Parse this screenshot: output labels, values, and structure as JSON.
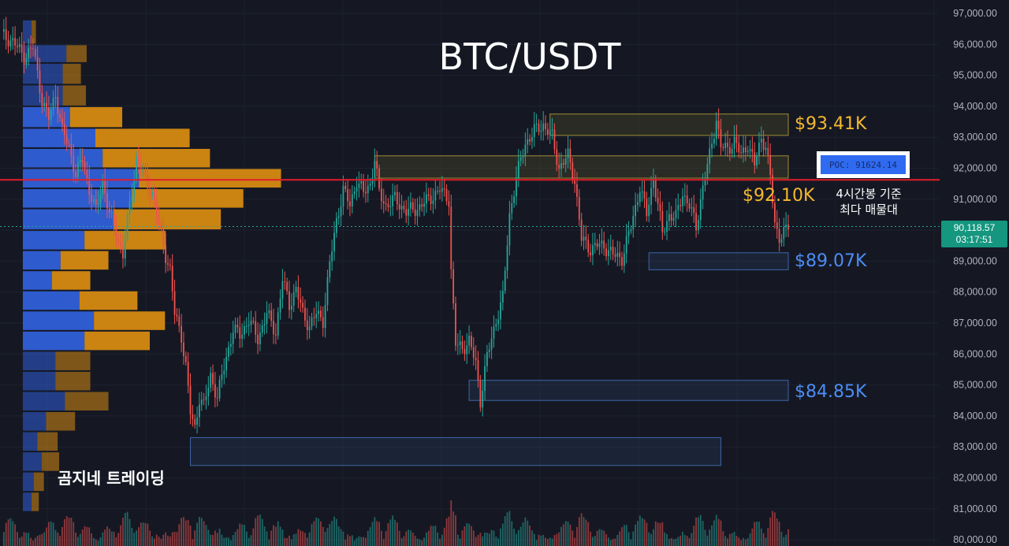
{
  "header": {
    "title": "BTC/USDT"
  },
  "watermark": "곰지네 트레이딩",
  "colors": {
    "background": "#151823",
    "up_candle": "#26a69a",
    "down_candle": "#ef5350",
    "poc_line": "#e11d2a",
    "resistance_label": "#f5b82e",
    "support_label": "#4c8df6",
    "vp_blue": "#2f5fd8",
    "vp_orange": "#d58a12"
  },
  "price_axis": {
    "ticks": [
      "97,000.00",
      "96,000.00",
      "95,000.00",
      "94,000.00",
      "93,000.00",
      "92,000.00",
      "91,000.00",
      "90,000.00",
      "89,000.00",
      "88,000.00",
      "87,000.00",
      "86,000.00",
      "85,000.00",
      "84,000.00",
      "83,000.00",
      "82,000.00",
      "81,000.00",
      "80,000.00"
    ],
    "current_price": "90,118.57",
    "countdown": "03:17:51"
  },
  "levels": {
    "resistance_1": "$93.41K",
    "poc_level": "$92.10K",
    "support_1": "$89.07K",
    "support_2": "$84.85K"
  },
  "poc_box": {
    "label": "POC: 91624.14"
  },
  "poc_note": {
    "line1": "4시간봉 기준",
    "line2": "최다 매물대"
  },
  "chart_data": {
    "type": "candlestick",
    "title": "BTC/USDT",
    "ylim": [
      80000,
      97400
    ],
    "current_price": 90118.57,
    "poc_price": 91624.14,
    "levels": [
      93410,
      92100,
      89070,
      84850
    ],
    "close_path": [
      [
        0,
        96300
      ],
      [
        5,
        96100
      ],
      [
        10,
        95600
      ],
      [
        14,
        95900
      ],
      [
        18,
        94200
      ],
      [
        21,
        93600
      ],
      [
        24,
        94400
      ],
      [
        27,
        93200
      ],
      [
        30,
        92700
      ],
      [
        33,
        91800
      ],
      [
        36,
        92300
      ],
      [
        39,
        91300
      ],
      [
        42,
        90600
      ],
      [
        45,
        91600
      ],
      [
        48,
        90500
      ],
      [
        51,
        89900
      ],
      [
        54,
        89200
      ],
      [
        57,
        90800
      ],
      [
        60,
        92300
      ],
      [
        64,
        91600
      ],
      [
        67,
        91200
      ],
      [
        70,
        90200
      ],
      [
        73,
        89200
      ],
      [
        75,
        88700
      ],
      [
        77,
        87300
      ],
      [
        80,
        86600
      ],
      [
        82,
        85600
      ],
      [
        84,
        84100
      ],
      [
        86,
        83600
      ],
      [
        88,
        84600
      ],
      [
        90,
        84300
      ],
      [
        93,
        85300
      ],
      [
        96,
        84600
      ],
      [
        100,
        85900
      ],
      [
        103,
        86800
      ],
      [
        106,
        86600
      ],
      [
        110,
        87100
      ],
      [
        114,
        86500
      ],
      [
        118,
        87300
      ],
      [
        122,
        86700
      ],
      [
        125,
        88400
      ],
      [
        128,
        87600
      ],
      [
        131,
        88100
      ],
      [
        134,
        87300
      ],
      [
        137,
        86900
      ],
      [
        140,
        87300
      ],
      [
        143,
        87100
      ],
      [
        146,
        88900
      ],
      [
        149,
        90300
      ],
      [
        152,
        91300
      ],
      [
        155,
        90800
      ],
      [
        158,
        91600
      ],
      [
        161,
        91200
      ],
      [
        164,
        91500
      ],
      [
        166,
        92300
      ],
      [
        168,
        91200
      ],
      [
        171,
        90800
      ],
      [
        175,
        91000
      ],
      [
        180,
        90600
      ],
      [
        185,
        90700
      ],
      [
        190,
        91000
      ],
      [
        195,
        91300
      ],
      [
        199,
        91000
      ],
      [
        200,
        88700
      ],
      [
        202,
        86300
      ],
      [
        205,
        86200
      ],
      [
        208,
        86400
      ],
      [
        211,
        85700
      ],
      [
        213,
        84500
      ],
      [
        216,
        85900
      ],
      [
        220,
        87100
      ],
      [
        223,
        87800
      ],
      [
        226,
        90500
      ],
      [
        229,
        91700
      ],
      [
        233,
        92800
      ],
      [
        237,
        93200
      ],
      [
        241,
        93400
      ],
      [
        245,
        93000
      ],
      [
        248,
        92000
      ],
      [
        252,
        92400
      ],
      [
        255,
        91600
      ],
      [
        258,
        89700
      ],
      [
        262,
        89400
      ],
      [
        265,
        89500
      ],
      [
        268,
        89500
      ],
      [
        272,
        89200
      ],
      [
        276,
        89100
      ],
      [
        280,
        90100
      ],
      [
        284,
        91400
      ],
      [
        287,
        90500
      ],
      [
        290,
        91700
      ],
      [
        294,
        89900
      ],
      [
        297,
        90500
      ],
      [
        300,
        90400
      ],
      [
        303,
        91200
      ],
      [
        306,
        90800
      ],
      [
        309,
        90100
      ],
      [
        312,
        91400
      ],
      [
        315,
        92400
      ],
      [
        318,
        93600
      ],
      [
        320,
        92700
      ],
      [
        323,
        92600
      ],
      [
        326,
        92900
      ],
      [
        329,
        92400
      ],
      [
        332,
        92800
      ],
      [
        335,
        92100
      ],
      [
        338,
        93000
      ],
      [
        340,
        92700
      ],
      [
        342,
        91700
      ],
      [
        344,
        90200
      ],
      [
        346,
        89800
      ],
      [
        348,
        89900
      ],
      [
        350,
        90100
      ]
    ],
    "volume_profile": [
      {
        "price_low": 96000,
        "price_high": 96800,
        "buy": 12,
        "sell": 6
      },
      {
        "price_low": 95400,
        "price_high": 96000,
        "buy": 60,
        "sell": 28
      },
      {
        "price_low": 94700,
        "price_high": 95400,
        "buy": 55,
        "sell": 25
      },
      {
        "price_low": 94000,
        "price_high": 94700,
        "buy": 55,
        "sell": 32
      },
      {
        "price_low": 93300,
        "price_high": 94000,
        "buy": 65,
        "sell": 72
      },
      {
        "price_low": 92650,
        "price_high": 93300,
        "buy": 100,
        "sell": 130
      },
      {
        "price_low": 92000,
        "price_high": 92650,
        "buy": 110,
        "sell": 148
      },
      {
        "price_low": 91350,
        "price_high": 92000,
        "buy": 160,
        "sell": 196
      },
      {
        "price_low": 90700,
        "price_high": 91350,
        "buy": 150,
        "sell": 154
      },
      {
        "price_low": 90000,
        "price_high": 90700,
        "buy": 125,
        "sell": 148
      },
      {
        "price_low": 89350,
        "price_high": 90000,
        "buy": 85,
        "sell": 112
      },
      {
        "price_low": 88700,
        "price_high": 89350,
        "buy": 52,
        "sell": 66
      },
      {
        "price_low": 88050,
        "price_high": 88700,
        "buy": 40,
        "sell": 53
      },
      {
        "price_low": 87400,
        "price_high": 88050,
        "buy": 78,
        "sell": 80
      },
      {
        "price_low": 86750,
        "price_high": 87400,
        "buy": 98,
        "sell": 98
      },
      {
        "price_low": 86100,
        "price_high": 86750,
        "buy": 85,
        "sell": 90
      },
      {
        "price_low": 85450,
        "price_high": 86100,
        "buy": 45,
        "sell": 48
      },
      {
        "price_low": 84800,
        "price_high": 85450,
        "buy": 45,
        "sell": 48
      },
      {
        "price_low": 84150,
        "price_high": 84800,
        "buy": 58,
        "sell": 60
      },
      {
        "price_low": 83500,
        "price_high": 84150,
        "buy": 32,
        "sell": 40
      },
      {
        "price_low": 82850,
        "price_high": 83500,
        "buy": 20,
        "sell": 28
      },
      {
        "price_low": 82200,
        "price_high": 82850,
        "buy": 26,
        "sell": 24
      },
      {
        "price_low": 81550,
        "price_high": 82200,
        "buy": 15,
        "sell": 14
      },
      {
        "price_low": 80900,
        "price_high": 81550,
        "buy": 12,
        "sell": 10
      }
    ],
    "zones": [
      {
        "name": "resistance-93k",
        "x_start": 244,
        "x_end": 350,
        "price_low": 93060,
        "price_high": 93750,
        "color": "#c9b23a"
      },
      {
        "name": "resistance-92k",
        "x_start": 166,
        "x_end": 350,
        "price_low": 91680,
        "price_high": 92400,
        "color": "#c9b23a"
      },
      {
        "name": "support-89k",
        "x_start": 288,
        "x_end": 350,
        "price_low": 88720,
        "price_high": 89270,
        "color": "#4a7fd0"
      },
      {
        "name": "support-85k",
        "x_start": 208,
        "x_end": 350,
        "price_low": 84500,
        "price_high": 85150,
        "color": "#4a7fd0"
      },
      {
        "name": "support-83k",
        "x_start": 84,
        "x_end": 320,
        "price_low": 82400,
        "price_high": 83300,
        "color": "#4a7fd0"
      }
    ]
  }
}
